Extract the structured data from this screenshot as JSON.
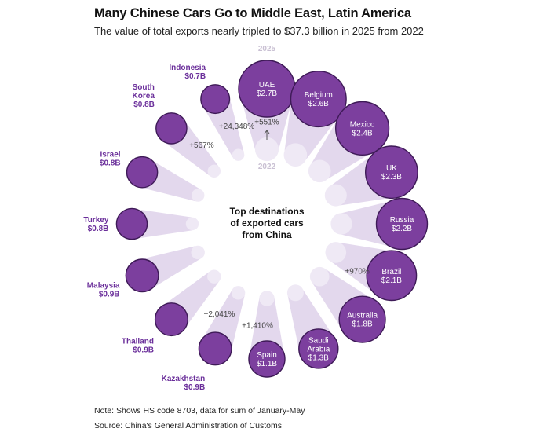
{
  "title": "Many Chinese Cars Go to Middle East, Latin America",
  "subtitle": "The value of total exports nearly tripled to $37.3 billion in 2025 from 2022",
  "note": "Note: Shows HS code 8703, data for sum of January-May",
  "source": "Source: China's General Administration of Customs",
  "chart_data": {
    "type": "radial-bubble",
    "center_label": [
      "Top destinations",
      "of exported cars",
      "from China"
    ],
    "year_labels": {
      "outer": "2025",
      "inner": "2022"
    },
    "unit": "$B",
    "colors": {
      "bubble_2025": "#7c3f9e",
      "bubble_border": "#3e1a57",
      "bubble_2022": "#efe9f5",
      "text_label": "#6a2e9a"
    },
    "countries": [
      {
        "name": [
          "UAE"
        ],
        "value_2025": 2.7,
        "label": "$2.7B",
        "growth": "+551%"
      },
      {
        "name": [
          "Belgium"
        ],
        "value_2025": 2.6,
        "label": "$2.6B"
      },
      {
        "name": [
          "Mexico"
        ],
        "value_2025": 2.4,
        "label": "$2.4B"
      },
      {
        "name": [
          "UK"
        ],
        "value_2025": 2.3,
        "label": "$2.3B"
      },
      {
        "name": [
          "Russia"
        ],
        "value_2025": 2.2,
        "label": "$2.2B"
      },
      {
        "name": [
          "Brazil"
        ],
        "value_2025": 2.1,
        "label": "$2.1B",
        "growth": "+970%"
      },
      {
        "name": [
          "Australia"
        ],
        "value_2025": 1.8,
        "label": "$1.8B"
      },
      {
        "name": [
          "Saudi",
          "Arabia"
        ],
        "value_2025": 1.3,
        "label": "$1.3B"
      },
      {
        "name": [
          "Spain"
        ],
        "value_2025": 1.1,
        "label": "$1.1B",
        "growth": "+1,410%"
      },
      {
        "name": [
          "Kazakhstan"
        ],
        "value_2025": 0.9,
        "label": "$0.9B",
        "growth": "+2,041%"
      },
      {
        "name": [
          "Thailand"
        ],
        "value_2025": 0.9,
        "label": "$0.9B"
      },
      {
        "name": [
          "Malaysia"
        ],
        "value_2025": 0.9,
        "label": "$0.9B"
      },
      {
        "name": [
          "Turkey"
        ],
        "value_2025": 0.8,
        "label": "$0.8B"
      },
      {
        "name": [
          "Israel"
        ],
        "value_2025": 0.8,
        "label": "$0.8B"
      },
      {
        "name": [
          "South",
          "Korea"
        ],
        "value_2025": 0.8,
        "label": "$0.8B",
        "growth": "+567%"
      },
      {
        "name": [
          "Indonesia"
        ],
        "value_2025": 0.7,
        "label": "$0.7B",
        "growth": "+24,348%"
      }
    ]
  }
}
